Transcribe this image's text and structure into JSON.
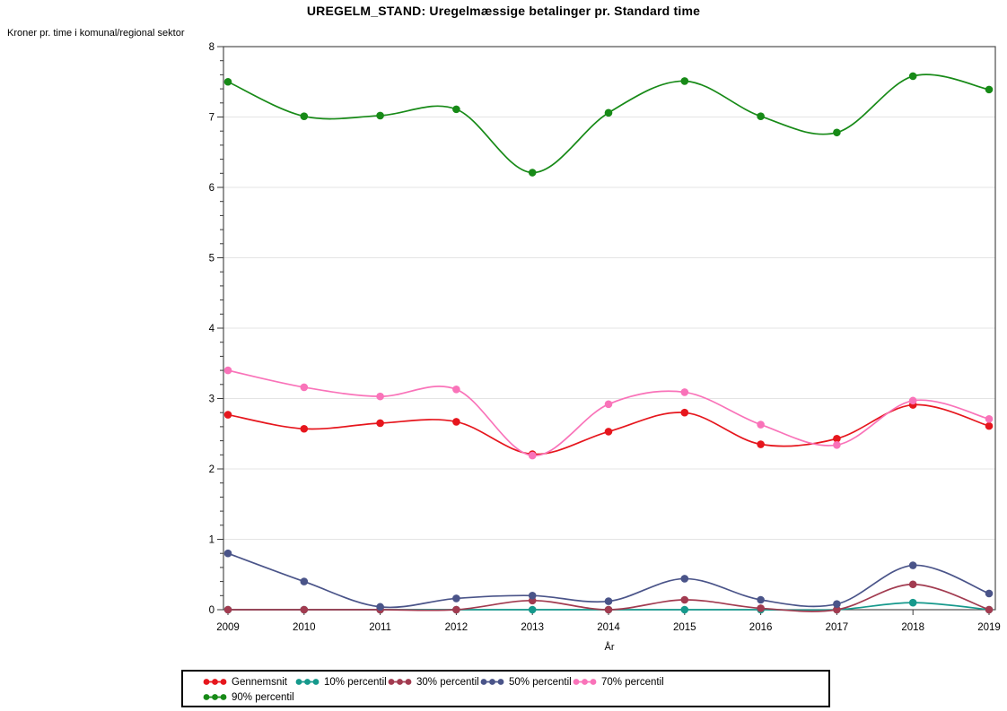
{
  "chart_data": {
    "type": "line",
    "title": "UREGELM_STAND: Uregelmæssige betalinger pr. Standard time",
    "y_unit_label": "Kroner pr. time i komunal/regional sektor",
    "xlabel": "År",
    "x": [
      2009,
      2010,
      2011,
      2012,
      2013,
      2014,
      2015,
      2016,
      2017,
      2018,
      2019
    ],
    "ylim": [
      0,
      8
    ],
    "ytick_interval": 1,
    "yminor_interval": 0.2,
    "grid": "horizontal-major",
    "legend_position": "bottom",
    "marker": "filled-circle",
    "interpolation": "spline",
    "series": [
      {
        "name": "Gennemsnit",
        "color": "#e6161d",
        "values": [
          2.77,
          2.57,
          2.65,
          2.67,
          2.21,
          2.53,
          2.8,
          2.35,
          2.43,
          2.91,
          2.61
        ]
      },
      {
        "name": "10% percentil",
        "color": "#16998c",
        "values": [
          0.0,
          0.0,
          0.0,
          0.0,
          0.0,
          0.0,
          0.0,
          0.0,
          0.0,
          0.1,
          0.0
        ]
      },
      {
        "name": "30% percentil",
        "color": "#a23b50",
        "values": [
          0.0,
          0.0,
          0.0,
          0.0,
          0.13,
          0.0,
          0.14,
          0.02,
          0.0,
          0.36,
          0.0
        ]
      },
      {
        "name": "50% percentil",
        "color": "#4a5489",
        "values": [
          0.8,
          0.4,
          0.04,
          0.16,
          0.2,
          0.12,
          0.44,
          0.14,
          0.08,
          0.63,
          0.23
        ]
      },
      {
        "name": "70% percentil",
        "color": "#f973b9",
        "values": [
          3.4,
          3.16,
          3.03,
          3.13,
          2.19,
          2.92,
          3.09,
          2.63,
          2.34,
          2.97,
          2.71
        ]
      },
      {
        "name": "90% percentil",
        "color": "#178a17",
        "values": [
          7.5,
          7.01,
          7.02,
          7.11,
          6.21,
          7.06,
          7.51,
          7.01,
          6.78,
          7.58,
          7.39
        ]
      }
    ],
    "colors": {
      "gridline": "#e4e4e4",
      "frame": "#4d4d4d",
      "tick": "#3a3a3a",
      "text": "#000000",
      "legend_border": "#000000"
    }
  }
}
